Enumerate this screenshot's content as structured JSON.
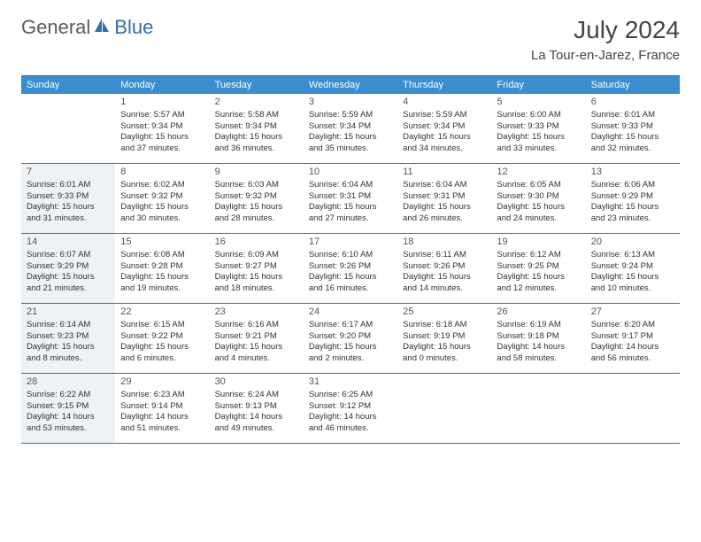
{
  "logo": {
    "part1": "General",
    "part2": "Blue"
  },
  "title": "July 2024",
  "location": "La Tour-en-Jarez, France",
  "colors": {
    "header_bg": "#3a8dce",
    "border": "#2f6fa8",
    "shaded_bg": "#eef2f5",
    "text": "#333333",
    "logo_gray": "#5a5a5a",
    "logo_blue": "#2f6fa8"
  },
  "weekdays": [
    "Sunday",
    "Monday",
    "Tuesday",
    "Wednesday",
    "Thursday",
    "Friday",
    "Saturday"
  ],
  "weeks": [
    [
      {
        "n": "",
        "shaded": false,
        "sr": "",
        "ss": "",
        "dl": ""
      },
      {
        "n": "1",
        "shaded": false,
        "sr": "Sunrise: 5:57 AM",
        "ss": "Sunset: 9:34 PM",
        "dl": "Daylight: 15 hours and 37 minutes."
      },
      {
        "n": "2",
        "shaded": false,
        "sr": "Sunrise: 5:58 AM",
        "ss": "Sunset: 9:34 PM",
        "dl": "Daylight: 15 hours and 36 minutes."
      },
      {
        "n": "3",
        "shaded": false,
        "sr": "Sunrise: 5:59 AM",
        "ss": "Sunset: 9:34 PM",
        "dl": "Daylight: 15 hours and 35 minutes."
      },
      {
        "n": "4",
        "shaded": false,
        "sr": "Sunrise: 5:59 AM",
        "ss": "Sunset: 9:34 PM",
        "dl": "Daylight: 15 hours and 34 minutes."
      },
      {
        "n": "5",
        "shaded": false,
        "sr": "Sunrise: 6:00 AM",
        "ss": "Sunset: 9:33 PM",
        "dl": "Daylight: 15 hours and 33 minutes."
      },
      {
        "n": "6",
        "shaded": false,
        "sr": "Sunrise: 6:01 AM",
        "ss": "Sunset: 9:33 PM",
        "dl": "Daylight: 15 hours and 32 minutes."
      }
    ],
    [
      {
        "n": "7",
        "shaded": true,
        "sr": "Sunrise: 6:01 AM",
        "ss": "Sunset: 9:33 PM",
        "dl": "Daylight: 15 hours and 31 minutes."
      },
      {
        "n": "8",
        "shaded": false,
        "sr": "Sunrise: 6:02 AM",
        "ss": "Sunset: 9:32 PM",
        "dl": "Daylight: 15 hours and 30 minutes."
      },
      {
        "n": "9",
        "shaded": false,
        "sr": "Sunrise: 6:03 AM",
        "ss": "Sunset: 9:32 PM",
        "dl": "Daylight: 15 hours and 28 minutes."
      },
      {
        "n": "10",
        "shaded": false,
        "sr": "Sunrise: 6:04 AM",
        "ss": "Sunset: 9:31 PM",
        "dl": "Daylight: 15 hours and 27 minutes."
      },
      {
        "n": "11",
        "shaded": false,
        "sr": "Sunrise: 6:04 AM",
        "ss": "Sunset: 9:31 PM",
        "dl": "Daylight: 15 hours and 26 minutes."
      },
      {
        "n": "12",
        "shaded": false,
        "sr": "Sunrise: 6:05 AM",
        "ss": "Sunset: 9:30 PM",
        "dl": "Daylight: 15 hours and 24 minutes."
      },
      {
        "n": "13",
        "shaded": false,
        "sr": "Sunrise: 6:06 AM",
        "ss": "Sunset: 9:29 PM",
        "dl": "Daylight: 15 hours and 23 minutes."
      }
    ],
    [
      {
        "n": "14",
        "shaded": true,
        "sr": "Sunrise: 6:07 AM",
        "ss": "Sunset: 9:29 PM",
        "dl": "Daylight: 15 hours and 21 minutes."
      },
      {
        "n": "15",
        "shaded": false,
        "sr": "Sunrise: 6:08 AM",
        "ss": "Sunset: 9:28 PM",
        "dl": "Daylight: 15 hours and 19 minutes."
      },
      {
        "n": "16",
        "shaded": false,
        "sr": "Sunrise: 6:09 AM",
        "ss": "Sunset: 9:27 PM",
        "dl": "Daylight: 15 hours and 18 minutes."
      },
      {
        "n": "17",
        "shaded": false,
        "sr": "Sunrise: 6:10 AM",
        "ss": "Sunset: 9:26 PM",
        "dl": "Daylight: 15 hours and 16 minutes."
      },
      {
        "n": "18",
        "shaded": false,
        "sr": "Sunrise: 6:11 AM",
        "ss": "Sunset: 9:26 PM",
        "dl": "Daylight: 15 hours and 14 minutes."
      },
      {
        "n": "19",
        "shaded": false,
        "sr": "Sunrise: 6:12 AM",
        "ss": "Sunset: 9:25 PM",
        "dl": "Daylight: 15 hours and 12 minutes."
      },
      {
        "n": "20",
        "shaded": false,
        "sr": "Sunrise: 6:13 AM",
        "ss": "Sunset: 9:24 PM",
        "dl": "Daylight: 15 hours and 10 minutes."
      }
    ],
    [
      {
        "n": "21",
        "shaded": true,
        "sr": "Sunrise: 6:14 AM",
        "ss": "Sunset: 9:23 PM",
        "dl": "Daylight: 15 hours and 8 minutes."
      },
      {
        "n": "22",
        "shaded": false,
        "sr": "Sunrise: 6:15 AM",
        "ss": "Sunset: 9:22 PM",
        "dl": "Daylight: 15 hours and 6 minutes."
      },
      {
        "n": "23",
        "shaded": false,
        "sr": "Sunrise: 6:16 AM",
        "ss": "Sunset: 9:21 PM",
        "dl": "Daylight: 15 hours and 4 minutes."
      },
      {
        "n": "24",
        "shaded": false,
        "sr": "Sunrise: 6:17 AM",
        "ss": "Sunset: 9:20 PM",
        "dl": "Daylight: 15 hours and 2 minutes."
      },
      {
        "n": "25",
        "shaded": false,
        "sr": "Sunrise: 6:18 AM",
        "ss": "Sunset: 9:19 PM",
        "dl": "Daylight: 15 hours and 0 minutes."
      },
      {
        "n": "26",
        "shaded": false,
        "sr": "Sunrise: 6:19 AM",
        "ss": "Sunset: 9:18 PM",
        "dl": "Daylight: 14 hours and 58 minutes."
      },
      {
        "n": "27",
        "shaded": false,
        "sr": "Sunrise: 6:20 AM",
        "ss": "Sunset: 9:17 PM",
        "dl": "Daylight: 14 hours and 56 minutes."
      }
    ],
    [
      {
        "n": "28",
        "shaded": true,
        "sr": "Sunrise: 6:22 AM",
        "ss": "Sunset: 9:15 PM",
        "dl": "Daylight: 14 hours and 53 minutes."
      },
      {
        "n": "29",
        "shaded": false,
        "sr": "Sunrise: 6:23 AM",
        "ss": "Sunset: 9:14 PM",
        "dl": "Daylight: 14 hours and 51 minutes."
      },
      {
        "n": "30",
        "shaded": false,
        "sr": "Sunrise: 6:24 AM",
        "ss": "Sunset: 9:13 PM",
        "dl": "Daylight: 14 hours and 49 minutes."
      },
      {
        "n": "31",
        "shaded": false,
        "sr": "Sunrise: 6:25 AM",
        "ss": "Sunset: 9:12 PM",
        "dl": "Daylight: 14 hours and 46 minutes."
      },
      {
        "n": "",
        "shaded": false,
        "sr": "",
        "ss": "",
        "dl": ""
      },
      {
        "n": "",
        "shaded": false,
        "sr": "",
        "ss": "",
        "dl": ""
      },
      {
        "n": "",
        "shaded": false,
        "sr": "",
        "ss": "",
        "dl": ""
      }
    ]
  ]
}
